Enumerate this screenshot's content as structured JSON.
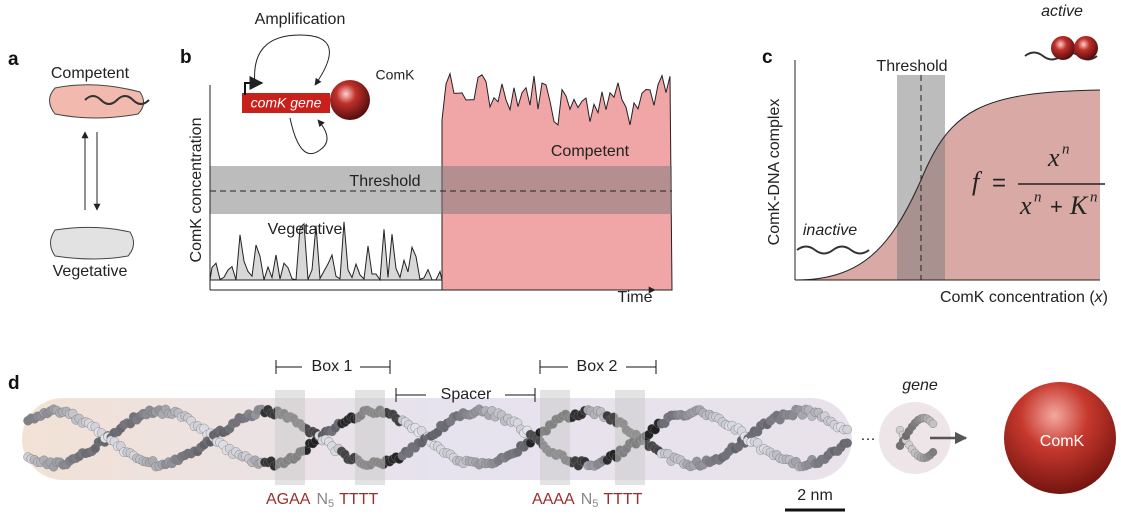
{
  "panel_a": {
    "label": "a",
    "top_state": "Competent",
    "bottom_state": "Vegetative"
  },
  "panel_b": {
    "label": "b",
    "loop_label": "Amplification",
    "protein": "ComK",
    "gene": "comK gene",
    "y_label": "ComK concentration",
    "x_label": "Time",
    "threshold": "Threshold",
    "high_state": "Competent",
    "low_state": "Vegetative"
  },
  "panel_c": {
    "label": "c",
    "threshold": "Threshold",
    "active": "active",
    "inactive": "inactive",
    "y_label": "ComK-DNA complex",
    "x_label_pre": "ComK concentration (",
    "x_label_var": "x",
    "x_label_post": ")",
    "formula": {
      "lhs": "f",
      "equals": "=",
      "num": "x",
      "num_exp": "n",
      "den_a": "x",
      "den_a_exp": "n",
      "plus": "+",
      "den_b": "K",
      "den_b_exp": "n"
    }
  },
  "panel_d": {
    "label": "d",
    "box1": "Box 1",
    "spacer": "Spacer",
    "box2": "Box 2",
    "ellipsis": "…",
    "gene": "gene",
    "protein": "ComK",
    "seq1": {
      "a": "AGAA",
      "n": "N",
      "sub": "5",
      "b": "TTTT"
    },
    "seq2": {
      "a": "AAAA",
      "n": "N",
      "sub": "5",
      "b": "TTTT"
    },
    "scale": "2 nm"
  }
}
